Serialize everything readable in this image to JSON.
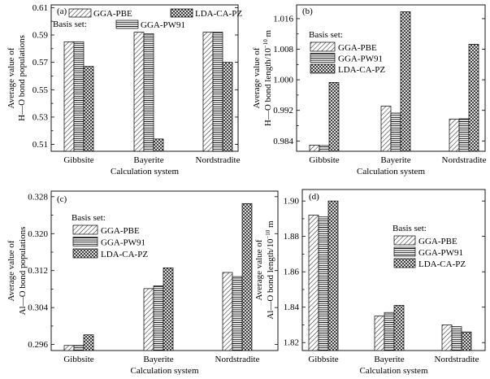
{
  "legend_title": "Basis set:",
  "series_names": [
    "GGA-PBE",
    "GGA-PW91",
    "LDA-CA-PZ"
  ],
  "chart_data": [
    {
      "type": "bar",
      "panel": "(a)",
      "categories": [
        "Gibbsite",
        "Bayerite",
        "Nordstradite"
      ],
      "series": [
        {
          "name": "GGA-PBE",
          "values": [
            0.585,
            0.592,
            0.592
          ]
        },
        {
          "name": "GGA-PW91",
          "values": [
            0.585,
            0.591,
            0.592
          ]
        },
        {
          "name": "LDA-CA-PZ",
          "values": [
            0.567,
            0.514,
            0.57
          ]
        }
      ],
      "ylim": [
        0.505,
        0.612
      ],
      "yticks": [
        0.51,
        0.53,
        0.55,
        0.57,
        0.59,
        0.61
      ],
      "ytick_labels": [
        "0.51",
        "0.53",
        "0.55",
        "0.57",
        "0.59",
        "0.61"
      ],
      "ylabel_lines": [
        "Average value of",
        "H—O bond populations"
      ],
      "xlabel": "Calculation system",
      "legend": "top-center"
    },
    {
      "type": "bar",
      "panel": "(b)",
      "categories": [
        "Gibbsite",
        "Bayerite",
        "Nordstradite"
      ],
      "series": [
        {
          "name": "GGA-PBE",
          "values": [
            0.9829,
            0.9931,
            0.9897
          ]
        },
        {
          "name": "GGA-PW91",
          "values": [
            0.9828,
            0.9913,
            0.9898
          ]
        },
        {
          "name": "LDA-CA-PZ",
          "values": [
            0.9993,
            1.0178,
            1.0093
          ]
        }
      ],
      "ylim": [
        0.9813,
        1.0196
      ],
      "yticks": [
        0.984,
        0.992,
        1.0,
        1.008,
        1.016
      ],
      "ytick_labels": [
        "0.984",
        "0.992",
        "1.000",
        "1.008",
        "1.016"
      ],
      "ylabel_lines": [
        "Average value of",
        "H—O bond length/10",
        "−10",
        " m"
      ],
      "xlabel": "Calculation system",
      "legend": "top-left"
    },
    {
      "type": "bar",
      "panel": "(c)",
      "categories": [
        "Gibbsite",
        "Bayerite",
        "Nordstradite"
      ],
      "series": [
        {
          "name": "GGA-PBE",
          "values": [
            0.2958,
            0.3081,
            0.3116
          ]
        },
        {
          "name": "GGA-PW91",
          "values": [
            0.2958,
            0.3087,
            0.3107
          ]
        },
        {
          "name": "LDA-CA-PZ",
          "values": [
            0.2981,
            0.3126,
            0.3265
          ]
        }
      ],
      "ylim": [
        0.2947,
        0.3292
      ],
      "yticks": [
        0.296,
        0.304,
        0.312,
        0.32,
        0.328
      ],
      "ytick_labels": [
        "0.296",
        "0.304",
        "0.312",
        "0.320",
        "0.328"
      ],
      "ylabel_lines": [
        "Average value of",
        "Al—O bond populations"
      ],
      "xlabel": "Calculation system",
      "legend": "top-left"
    },
    {
      "type": "bar",
      "panel": "(d)",
      "categories": [
        "Gibbsite",
        "Bayerite",
        "Nordstradite"
      ],
      "series": [
        {
          "name": "GGA-PBE",
          "values": [
            1.892,
            1.835,
            1.83
          ]
        },
        {
          "name": "GGA-PW91",
          "values": [
            1.891,
            1.837,
            1.829
          ]
        },
        {
          "name": "LDA-CA-PZ",
          "values": [
            1.9,
            1.841,
            1.826
          ]
        }
      ],
      "ylim": [
        1.8155,
        1.9065
      ],
      "yticks": [
        1.82,
        1.84,
        1.86,
        1.88,
        1.9
      ],
      "ytick_labels": [
        "1.82",
        "1.84",
        "1.86",
        "1.88",
        "1.90"
      ],
      "ylabel_lines": [
        "Average value of",
        "Al—O bond length/10",
        "−10",
        " m"
      ],
      "xlabel": "Calculation system",
      "legend": "top-right"
    }
  ]
}
